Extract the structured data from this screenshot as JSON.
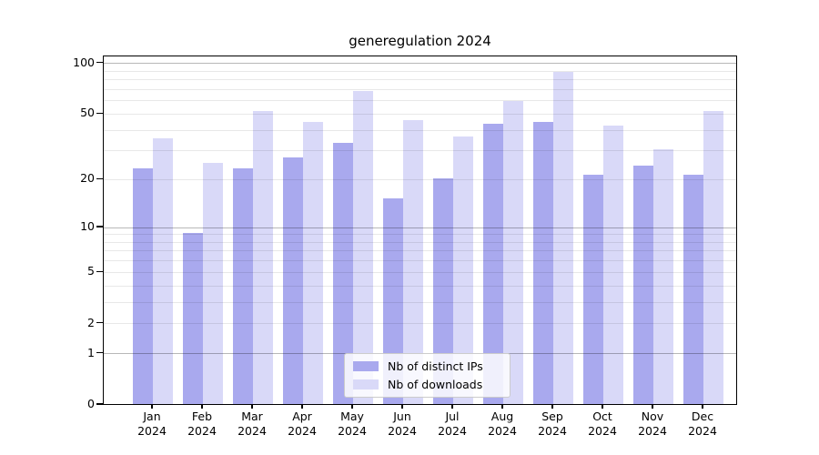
{
  "title": "generegulation 2024",
  "chart_data": {
    "type": "bar",
    "title": "generegulation 2024",
    "categories": [
      "Jan",
      "Feb",
      "Mar",
      "Apr",
      "May",
      "Jun",
      "Jul",
      "Aug",
      "Sep",
      "Oct",
      "Nov",
      "Dec"
    ],
    "year_label": "2024",
    "series": [
      {
        "name": "Nb of distinct IPs",
        "color": "#a9a9ee",
        "values": [
          23,
          9,
          23,
          27,
          33,
          15,
          20,
          43,
          44,
          21,
          24,
          21
        ]
      },
      {
        "name": "Nb of downloads",
        "color": "#d9d9f8",
        "values": [
          35,
          25,
          51,
          44,
          67,
          45,
          36,
          59,
          87,
          42,
          30,
          51
        ]
      }
    ],
    "y_scale": "log1p",
    "y_ticks": [
      100,
      50,
      20,
      10,
      5,
      2,
      1,
      0
    ],
    "y_minor_gridlines": [
      2,
      3,
      4,
      5,
      6,
      7,
      8,
      9,
      20,
      30,
      40,
      50,
      60,
      70,
      80,
      90
    ],
    "y_major_gridlines": [
      1,
      10,
      100
    ],
    "ylim": [
      0,
      110
    ],
    "grid": "on",
    "legend_position": "bottom-center"
  },
  "legend": {
    "items": [
      {
        "label": "Nb of distinct IPs",
        "color": "#a9a9ee"
      },
      {
        "label": "Nb of downloads",
        "color": "#d9d9f8"
      }
    ]
  }
}
